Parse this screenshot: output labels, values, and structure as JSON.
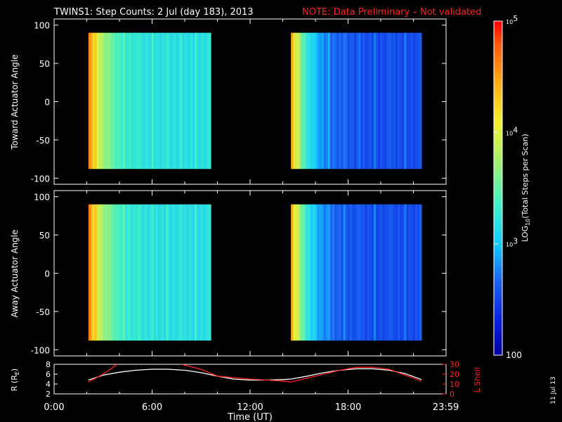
{
  "title": {
    "main": "TWINS1: Step Counts:  2 Jul (day 183), 2013",
    "note": "NOTE: Data Preliminary – Not validated",
    "note_color": "#ff2020"
  },
  "side_date": "11 Jul 13",
  "colorbar": {
    "label_prefix": "LOG",
    "label_sub": "10",
    "label_suffix": "(Total Steps per Scan)",
    "ticks": [
      {
        "value": 100,
        "label": "100"
      },
      {
        "value": 1000,
        "label": "10",
        "exp": "3"
      },
      {
        "value": 10000,
        "label": "10",
        "exp": "4"
      },
      {
        "value": 100000,
        "label": "10",
        "exp": "5"
      }
    ],
    "range": [
      100,
      100000
    ],
    "scale": "log"
  },
  "chart_data": [
    {
      "type": "heatmap",
      "name": "toward",
      "ylabel": "Toward Actuator Angle",
      "ylim": [
        -108,
        108
      ],
      "yticks": [
        100,
        50,
        0,
        -50,
        -100
      ],
      "xlim_hours": [
        0,
        24
      ],
      "data_angle_range": [
        -88,
        90
      ],
      "segments": [
        {
          "start_hour": 2.1,
          "end_hour": 9.6,
          "counts_start": 40000,
          "counts_end": 1500
        },
        {
          "start_hour": 14.5,
          "end_hour": 22.5,
          "counts_start": 25000,
          "counts_end": 350
        }
      ]
    },
    {
      "type": "heatmap",
      "name": "away",
      "ylabel": "Away Actuator Angle",
      "ylim": [
        -108,
        108
      ],
      "yticks": [
        100,
        50,
        0,
        -50,
        -100
      ],
      "xlim_hours": [
        0,
        24
      ],
      "data_angle_range": [
        -88,
        90
      ],
      "segments": [
        {
          "start_hour": 2.1,
          "end_hour": 9.6,
          "counts_start": 40000,
          "counts_end": 1500
        },
        {
          "start_hour": 14.5,
          "end_hour": 22.5,
          "counts_start": 25000,
          "counts_end": 350
        }
      ]
    },
    {
      "type": "line",
      "name": "orbit",
      "xlabel": "Time (UT)",
      "xticks": [
        "0:00",
        "6:00",
        "12:00",
        "18:00",
        "23:59"
      ],
      "xtick_hours": [
        0,
        6,
        12,
        18,
        23.98
      ],
      "left_axis": {
        "label": "R (R",
        "label_sub": "E",
        "label_end": ")",
        "ylim": [
          2,
          8
        ],
        "ticks": [
          2,
          4,
          6,
          8
        ]
      },
      "right_axis": {
        "label": "L Shell",
        "ylim": [
          0,
          30
        ],
        "ticks": [
          0,
          10,
          20,
          30
        ],
        "color": "#ff2020"
      },
      "series": [
        {
          "axis": "left",
          "color": "#ffffff",
          "x": [
            2.1,
            3,
            4,
            5,
            6,
            7,
            8,
            9,
            10,
            11,
            12,
            13,
            14,
            14.5,
            15.5,
            16.5,
            17.5,
            18.5,
            19.5,
            20.5,
            21.5,
            22.5
          ],
          "y": [
            4.8,
            5.8,
            6.4,
            6.8,
            7.0,
            7.0,
            6.8,
            6.3,
            5.6,
            5.0,
            4.8,
            4.8,
            4.9,
            5.0,
            5.6,
            6.3,
            6.8,
            7.1,
            7.1,
            6.8,
            6.1,
            4.9
          ]
        },
        {
          "axis": "right",
          "color": "#ff2020",
          "x": [
            2.1,
            3,
            3.7,
            4.0,
            7.6,
            7.8,
            9,
            10,
            12,
            14,
            14.5,
            15.5,
            16.5,
            17.5,
            18.5,
            19.5,
            20.5,
            21.5,
            22.5
          ],
          "y": [
            12,
            20,
            28,
            32,
            32,
            30,
            25,
            18,
            15,
            13,
            12,
            16,
            20,
            24,
            27,
            27,
            25,
            19,
            13
          ]
        }
      ]
    }
  ]
}
